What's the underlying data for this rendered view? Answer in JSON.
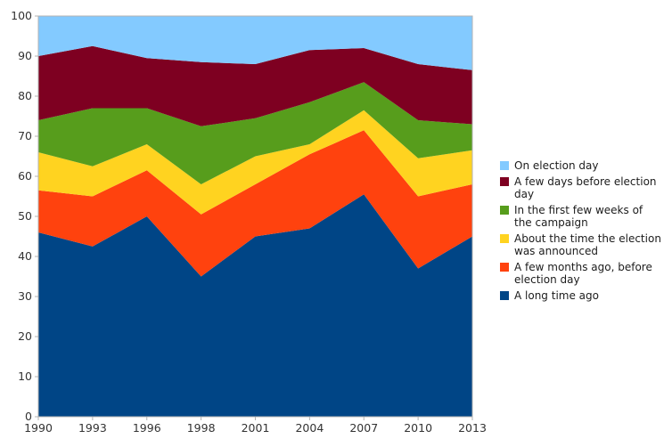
{
  "chart_data": {
    "type": "area",
    "stacked": true,
    "title": "",
    "xlabel": "",
    "ylabel": "",
    "categories": [
      "1990",
      "1993",
      "1996",
      "1998",
      "2001",
      "2004",
      "2007",
      "2010",
      "2013"
    ],
    "series": [
      {
        "name": "A long time ago",
        "color": "#004586",
        "values": [
          46,
          42.5,
          50,
          35,
          45,
          47,
          55.5,
          37,
          45
        ]
      },
      {
        "name": "A few months ago, before election day",
        "color": "#FF420E",
        "values": [
          10.5,
          12.5,
          11.5,
          15.5,
          13,
          18.5,
          16,
          18,
          13
        ]
      },
      {
        "name": "About the time the election was announced",
        "color": "#FFD320",
        "values": [
          9.5,
          7.5,
          6.5,
          7.5,
          7,
          2.5,
          5,
          9.5,
          8.5
        ]
      },
      {
        "name": "In the first few weeks of the campaign",
        "color": "#579D1C",
        "values": [
          8,
          14.5,
          9,
          14.5,
          9.5,
          10.5,
          7,
          9.5,
          6.5
        ]
      },
      {
        "name": "A few days before election day",
        "color": "#7E0021",
        "values": [
          16,
          15.5,
          12.5,
          16,
          13.5,
          13,
          8.5,
          14,
          13.5
        ]
      },
      {
        "name": "On election day",
        "color": "#83CAFF",
        "values": [
          10,
          7.5,
          10.5,
          11.5,
          12,
          8.5,
          8,
          12,
          13.5
        ]
      }
    ],
    "ylim": [
      0,
      100
    ],
    "y_ticks": [
      0,
      10,
      20,
      30,
      40,
      50,
      60,
      70,
      80,
      90,
      100
    ],
    "grid": false,
    "legend_position": "right",
    "axis_color": "#b3b3b3",
    "text_color": "#333333"
  },
  "legend": {
    "items": [
      {
        "label": "On election day",
        "color": "#83CAFF"
      },
      {
        "label": "A few days before election day",
        "color": "#7E0021"
      },
      {
        "label": "In the first few weeks of\nthe campaign",
        "color": "#579D1C"
      },
      {
        "label": "About the time the election\nwas announced",
        "color": "#FFD320"
      },
      {
        "label": "A few months ago, before\nelection day",
        "color": "#FF420E"
      },
      {
        "label": "A long time ago",
        "color": "#004586"
      }
    ]
  }
}
